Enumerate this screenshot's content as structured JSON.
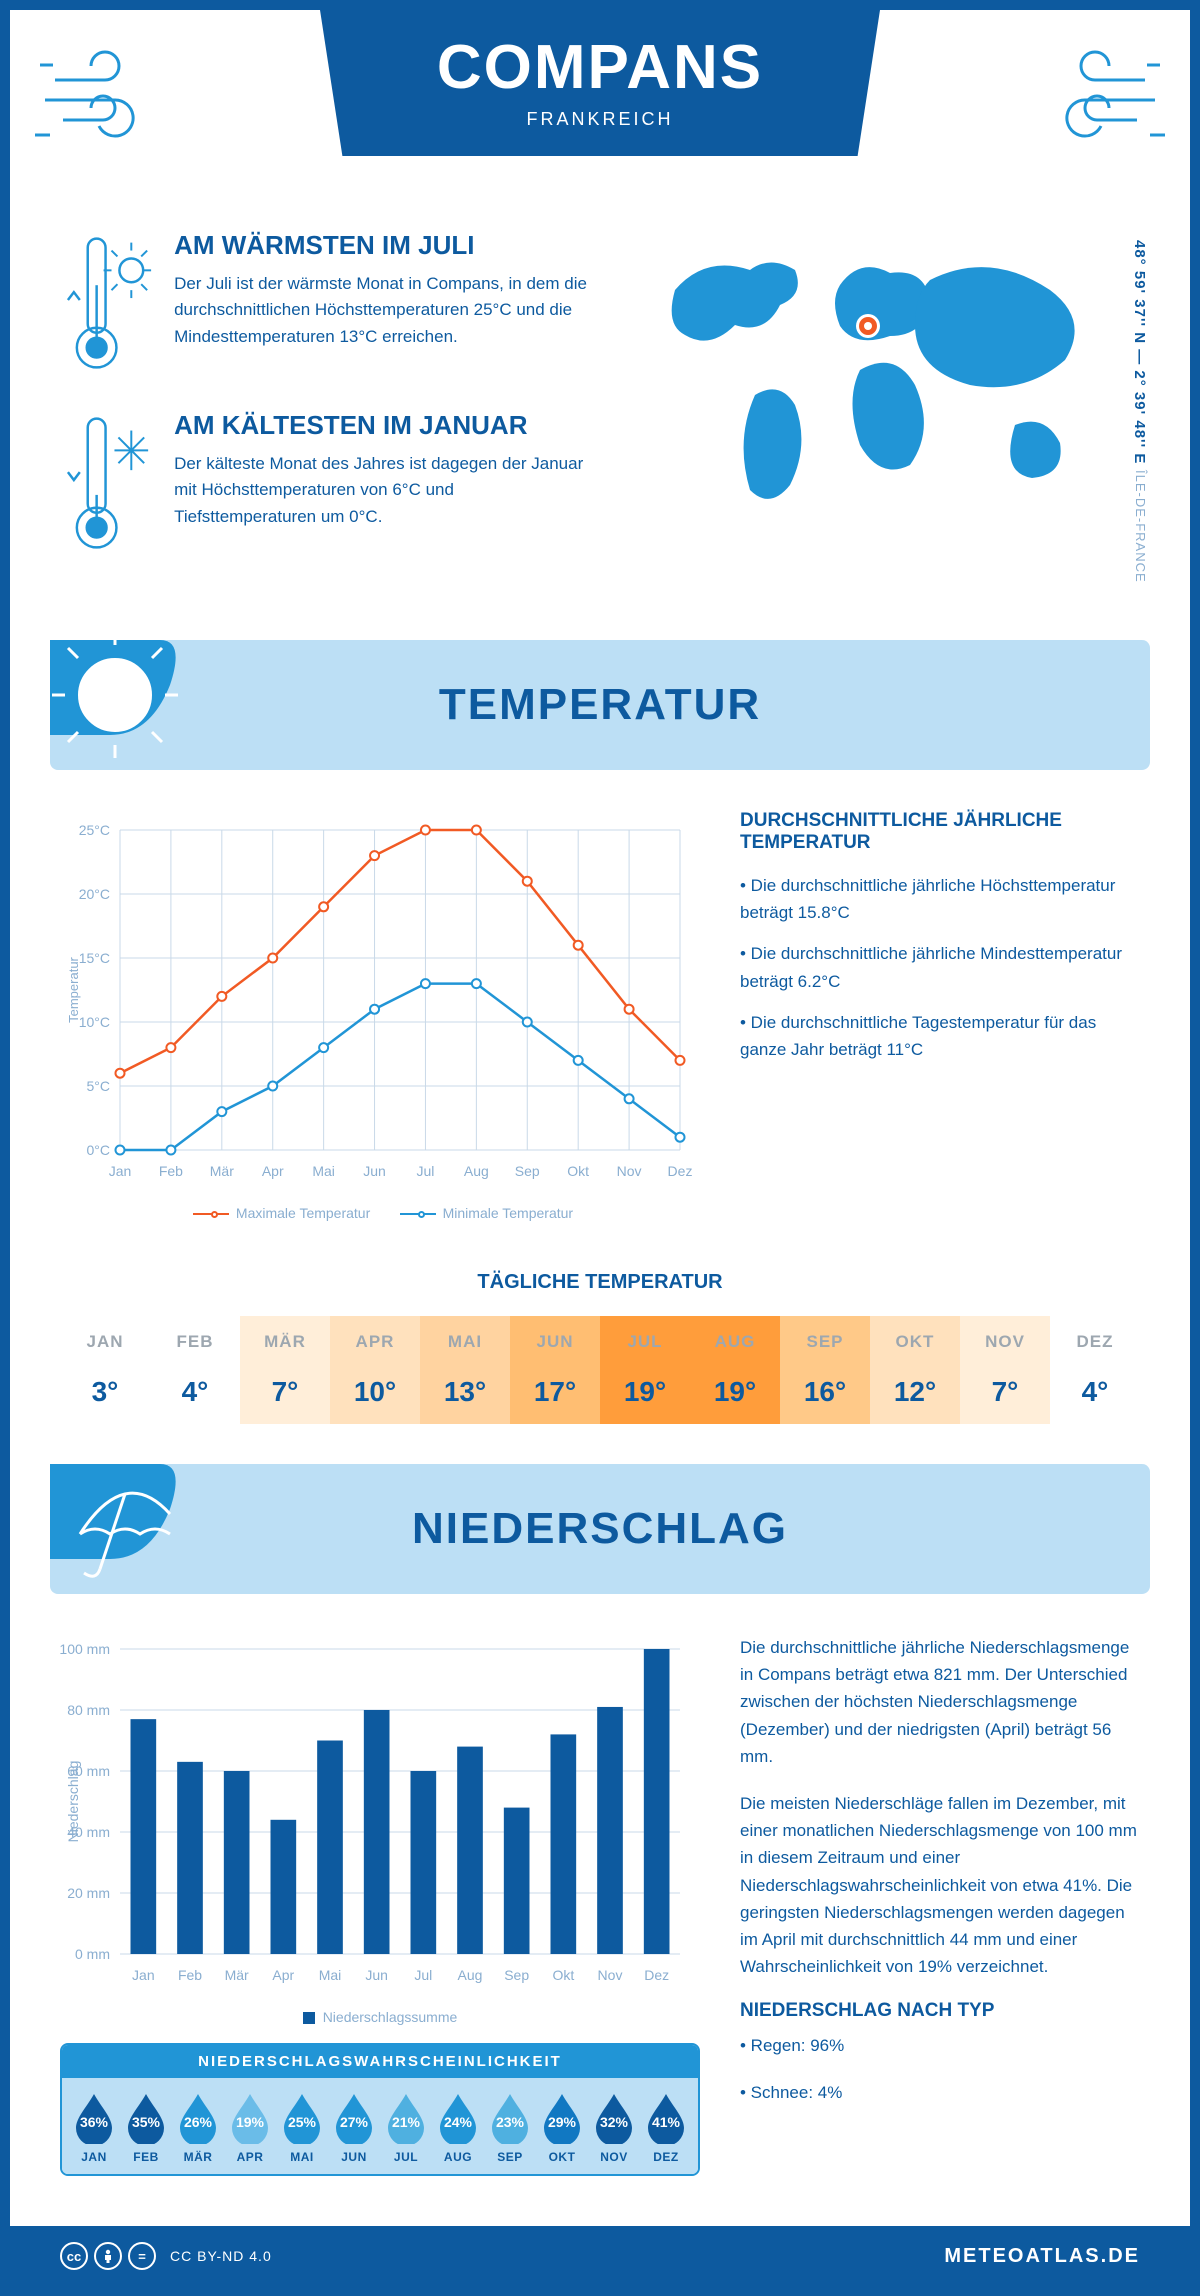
{
  "header": {
    "city": "COMPANS",
    "country": "FRANKREICH"
  },
  "coords": "48° 59' 37'' N — 2° 39' 48'' E",
  "region": "ÎLE-DE-FRANCE",
  "warm": {
    "title": "AM WÄRMSTEN IM JULI",
    "text": "Der Juli ist der wärmste Monat in Compans, in dem die durchschnittlichen Höchsttemperaturen 25°C und die Mindesttemperaturen 13°C erreichen."
  },
  "cold": {
    "title": "AM KÄLTESTEN IM JANUAR",
    "text": "Der kälteste Monat des Jahres ist dagegen der Januar mit Höchsttemperaturen von 6°C und Tiefsttemperaturen um 0°C."
  },
  "temp_section_title": "TEMPERATUR",
  "temp_chart": {
    "months": [
      "Jan",
      "Feb",
      "Mär",
      "Apr",
      "Mai",
      "Jun",
      "Jul",
      "Aug",
      "Sep",
      "Okt",
      "Nov",
      "Dez"
    ],
    "max": [
      6,
      8,
      12,
      15,
      19,
      23,
      25,
      25,
      21,
      16,
      11,
      7
    ],
    "min": [
      0,
      0,
      3,
      5,
      8,
      11,
      13,
      13,
      10,
      7,
      4,
      1
    ],
    "ylim": [
      0,
      25
    ],
    "ytick_step": 5,
    "y_label": "Temperatur",
    "max_color": "#f15a24",
    "min_color": "#2195d6",
    "grid_color": "#c9d9e8",
    "legend_max": "Maximale Temperatur",
    "legend_min": "Minimale Temperatur"
  },
  "temp_narr": {
    "title": "DURCHSCHNITTLICHE JÄHRLICHE TEMPERATUR",
    "p1": "• Die durchschnittliche jährliche Höchsttemperatur beträgt 15.8°C",
    "p2": "• Die durchschnittliche jährliche Mindesttemperatur beträgt 6.2°C",
    "p3": "• Die durchschnittliche Tagestemperatur für das ganze Jahr beträgt 11°C"
  },
  "daily": {
    "title": "TÄGLICHE TEMPERATUR",
    "months": [
      "JAN",
      "FEB",
      "MÄR",
      "APR",
      "MAI",
      "JUN",
      "JUL",
      "AUG",
      "SEP",
      "OKT",
      "NOV",
      "DEZ"
    ],
    "values": [
      "3°",
      "4°",
      "7°",
      "10°",
      "13°",
      "17°",
      "19°",
      "19°",
      "16°",
      "12°",
      "7°",
      "4°"
    ],
    "bg": [
      "#ffffff",
      "#ffffff",
      "#ffeed9",
      "#ffe1bd",
      "#ffd3a0",
      "#ffbe72",
      "#ff9d3b",
      "#ff9d3b",
      "#ffc988",
      "#ffe1bd",
      "#ffeed9",
      "#ffffff"
    ]
  },
  "precip_section_title": "NIEDERSCHLAG",
  "precip_chart": {
    "months": [
      "Jan",
      "Feb",
      "Mär",
      "Apr",
      "Mai",
      "Jun",
      "Jul",
      "Aug",
      "Sep",
      "Okt",
      "Nov",
      "Dez"
    ],
    "values": [
      77,
      63,
      60,
      44,
      70,
      80,
      60,
      68,
      48,
      72,
      81,
      100
    ],
    "ylim": [
      0,
      100
    ],
    "ytick_step": 20,
    "y_label": "Niederschlag",
    "bar_color": "#0d5a9f",
    "grid_color": "#c9d9e8",
    "legend": "Niederschlagssumme"
  },
  "precip_narr": {
    "p1": "Die durchschnittliche jährliche Niederschlagsmenge in Compans beträgt etwa 821 mm. Der Unterschied zwischen der höchsten Niederschlagsmenge (Dezember) und der niedrigsten (April) beträgt 56 mm.",
    "p2": "Die meisten Niederschläge fallen im Dezember, mit einer monatlichen Niederschlagsmenge von 100 mm in diesem Zeitraum und einer Niederschlagswahrscheinlichkeit von etwa 41%. Die geringsten Niederschlagsmengen werden dagegen im April mit durchschnittlich 44 mm und einer Wahrscheinlichkeit von 19% verzeichnet.",
    "type_title": "NIEDERSCHLAG NACH TYP",
    "type_p1": "• Regen: 96%",
    "type_p2": "• Schnee: 4%"
  },
  "prob": {
    "title": "NIEDERSCHLAGSWAHRSCHEINLICHKEIT",
    "months": [
      "JAN",
      "FEB",
      "MÄR",
      "APR",
      "MAI",
      "JUN",
      "JUL",
      "AUG",
      "SEP",
      "OKT",
      "NOV",
      "DEZ"
    ],
    "pcts": [
      "36%",
      "35%",
      "26%",
      "19%",
      "25%",
      "27%",
      "21%",
      "24%",
      "23%",
      "29%",
      "32%",
      "41%"
    ],
    "fill_colors": [
      "#0d5a9f",
      "#0d5a9f",
      "#2195d6",
      "#6abce8",
      "#2195d6",
      "#2195d6",
      "#4fb0e0",
      "#2195d6",
      "#4fb0e0",
      "#1178c2",
      "#0d5a9f",
      "#0d5a9f"
    ]
  },
  "footer": {
    "license": "CC BY-ND 4.0",
    "site": "METEOATLAS.DE"
  }
}
